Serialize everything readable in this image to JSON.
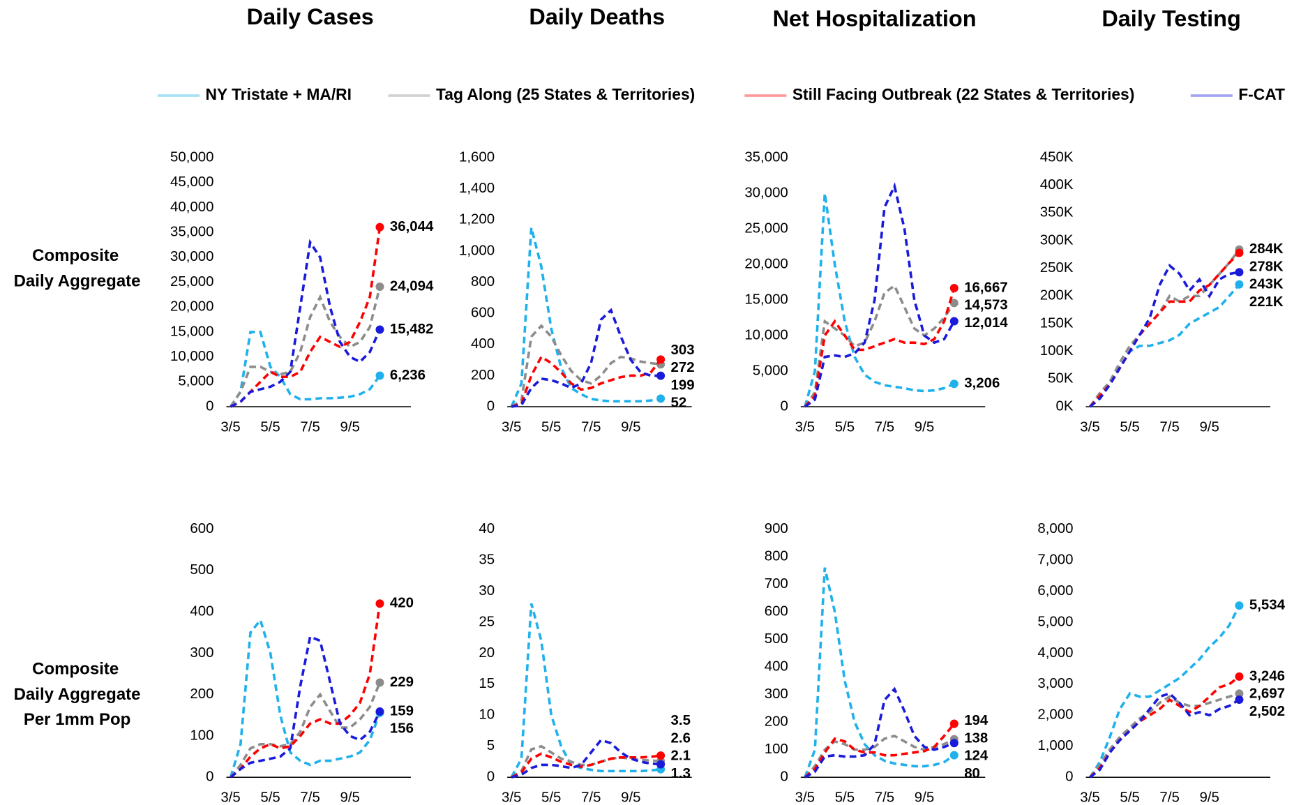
{
  "column_titles": [
    "Daily Cases",
    "Daily Deaths",
    "Net Hospitalization",
    "Daily Testing"
  ],
  "row_labels": [
    [
      "Composite",
      "Daily Aggregate"
    ],
    [
      "Composite",
      "Daily Aggregate",
      "Per 1mm Pop"
    ]
  ],
  "legend": [
    {
      "name": "NY Tristate + MA/RI",
      "color": "#1fb1ec"
    },
    {
      "name": "Tag Along (25 States & Territories)",
      "color": "#8c8c8c"
    },
    {
      "name": "Still Facing Outbreak (22 States & Territories)",
      "color": "#ff0000"
    },
    {
      "name": "F-CAT",
      "color": "#1a1adb"
    }
  ],
  "chart_data": [
    {
      "type": "line",
      "categories": [
        "3/5",
        null,
        null,
        null,
        "5/5",
        null,
        null,
        null,
        "7/5",
        null,
        null,
        null,
        "9/5",
        null,
        null,
        null
      ],
      "ylim": [
        0,
        50000
      ],
      "yticks": [
        0,
        {
          "value": 5000,
          "label": "5,000"
        },
        {
          "value": 10000,
          "label": "10,000"
        },
        {
          "value": 15000,
          "label": "15,000"
        },
        {
          "value": 20000,
          "label": "20,000"
        },
        {
          "value": 25000,
          "label": "25,000"
        },
        {
          "value": 30000,
          "label": "30,000"
        },
        {
          "value": 35000,
          "label": "35,000"
        },
        {
          "value": 40000,
          "label": "40,000"
        },
        {
          "value": 45000,
          "label": "45,000"
        },
        {
          "value": 50000,
          "label": "50,000"
        }
      ],
      "series": [
        {
          "values": [
            0,
            3000,
            15000,
            15000,
            8000,
            6000,
            2500,
            1500,
            1500,
            1700,
            1700,
            1800,
            2000,
            2500,
            3500,
            6236
          ],
          "end_label": "6,236"
        },
        {
          "values": [
            0,
            3000,
            8000,
            8000,
            7000,
            6500,
            7000,
            11000,
            18000,
            22000,
            17000,
            14000,
            12000,
            13000,
            16000,
            24094
          ],
          "end_label": "24,094"
        },
        {
          "values": [
            0,
            1000,
            3000,
            5000,
            7000,
            6000,
            6000,
            7000,
            11000,
            14000,
            13000,
            12000,
            13000,
            17000,
            22000,
            36044
          ],
          "end_label": "36,044"
        },
        {
          "values": [
            0,
            1000,
            3000,
            3500,
            4000,
            5000,
            7000,
            20000,
            33000,
            30000,
            20000,
            13000,
            10000,
            9000,
            11000,
            15482
          ],
          "end_label": "15,482"
        }
      ]
    },
    {
      "type": "line",
      "categories": [
        "3/5",
        null,
        null,
        null,
        "5/5",
        null,
        null,
        null,
        "7/5",
        null,
        null,
        null,
        "9/5",
        null,
        null,
        null
      ],
      "ylim": [
        0,
        1600
      ],
      "yticks": [
        0,
        200,
        400,
        600,
        800,
        {
          "value": 1000,
          "label": "1,000"
        },
        {
          "value": 1200,
          "label": "1,200"
        },
        {
          "value": 1400,
          "label": "1,400"
        },
        {
          "value": 1600,
          "label": "1,600"
        }
      ],
      "series": [
        {
          "values": [
            0,
            150,
            1150,
            900,
            500,
            250,
            120,
            80,
            50,
            40,
            35,
            35,
            35,
            35,
            40,
            52
          ],
          "end_label": "52"
        },
        {
          "values": [
            0,
            40,
            450,
            520,
            450,
            330,
            230,
            170,
            150,
            200,
            280,
            320,
            310,
            290,
            280,
            272
          ],
          "end_label": "272"
        },
        {
          "values": [
            0,
            20,
            200,
            320,
            280,
            220,
            150,
            110,
            120,
            150,
            170,
            190,
            200,
            200,
            220,
            303
          ],
          "end_label": "303"
        },
        {
          "values": [
            0,
            10,
            120,
            180,
            170,
            150,
            120,
            150,
            280,
            560,
            620,
            450,
            300,
            220,
            200,
            199
          ],
          "end_label": "199"
        }
      ]
    },
    {
      "type": "line",
      "categories": [
        "3/5",
        null,
        null,
        null,
        "5/5",
        null,
        null,
        null,
        "7/5",
        null,
        null,
        null,
        "9/5",
        null,
        null,
        null
      ],
      "ylim": [
        0,
        35000
      ],
      "yticks": [
        0,
        {
          "value": 5000,
          "label": "5,000"
        },
        {
          "value": 10000,
          "label": "10,000"
        },
        {
          "value": 15000,
          "label": "15,000"
        },
        {
          "value": 20000,
          "label": "20,000"
        },
        {
          "value": 25000,
          "label": "25,000"
        },
        {
          "value": 30000,
          "label": "30,000"
        },
        {
          "value": 35000,
          "label": "35,000"
        }
      ],
      "series": [
        {
          "values": [
            0,
            5000,
            30000,
            20000,
            12000,
            7000,
            4500,
            3500,
            3000,
            2800,
            2600,
            2300,
            2200,
            2300,
            2600,
            3206
          ],
          "end_label": "3,206"
        },
        {
          "values": [
            0,
            2000,
            12000,
            11000,
            10000,
            8500,
            9000,
            12000,
            16000,
            17000,
            14000,
            11000,
            10000,
            11000,
            12500,
            14573
          ],
          "end_label": "14,573"
        },
        {
          "values": [
            0,
            1500,
            10000,
            12000,
            10000,
            8000,
            8000,
            8500,
            9000,
            9500,
            9000,
            9000,
            8800,
            9500,
            12000,
            16667
          ],
          "end_label": "16,667"
        },
        {
          "values": [
            0,
            1000,
            7000,
            7200,
            7000,
            7500,
            9000,
            15000,
            28000,
            31000,
            25000,
            15000,
            10000,
            9000,
            9500,
            12014
          ],
          "end_label": "12,014"
        }
      ]
    },
    {
      "type": "line",
      "categories": [
        "3/5",
        null,
        null,
        null,
        "5/5",
        null,
        null,
        null,
        "7/5",
        null,
        null,
        null,
        "9/5",
        null,
        null,
        null
      ],
      "ylim": [
        0,
        450000
      ],
      "yticks": [
        {
          "value": 0,
          "label": "0K"
        },
        {
          "value": 50000,
          "label": "50K"
        },
        {
          "value": 100000,
          "label": "100K"
        },
        {
          "value": 150000,
          "label": "150K"
        },
        {
          "value": 200000,
          "label": "200K"
        },
        {
          "value": 250000,
          "label": "250K"
        },
        {
          "value": 300000,
          "label": "300K"
        },
        {
          "value": 350000,
          "label": "350K"
        },
        {
          "value": 400000,
          "label": "400K"
        },
        {
          "value": 450000,
          "label": "450K"
        }
      ],
      "series": [
        {
          "values": [
            0,
            15000,
            40000,
            70000,
            100000,
            110000,
            110000,
            115000,
            120000,
            130000,
            150000,
            160000,
            170000,
            180000,
            200000,
            221000
          ],
          "end_label": "221K"
        },
        {
          "values": [
            0,
            25000,
            45000,
            80000,
            110000,
            130000,
            150000,
            170000,
            200000,
            190000,
            200000,
            200000,
            220000,
            240000,
            260000,
            284000
          ],
          "end_label": "284K"
        },
        {
          "values": [
            0,
            20000,
            40000,
            70000,
            100000,
            130000,
            150000,
            170000,
            190000,
            190000,
            190000,
            210000,
            220000,
            240000,
            260000,
            278000
          ],
          "end_label": "278K"
        },
        {
          "values": [
            0,
            15000,
            40000,
            70000,
            100000,
            130000,
            160000,
            220000,
            255000,
            240000,
            210000,
            230000,
            200000,
            230000,
            240000,
            243000
          ],
          "end_label": "243K"
        }
      ]
    },
    {
      "type": "line",
      "categories": [
        "3/5",
        null,
        null,
        null,
        "5/5",
        null,
        null,
        null,
        "7/5",
        null,
        null,
        null,
        "9/5",
        null,
        null,
        null
      ],
      "ylim": [
        0,
        600
      ],
      "yticks": [
        0,
        100,
        200,
        300,
        400,
        500,
        600
      ],
      "series": [
        {
          "values": [
            0,
            80,
            350,
            380,
            300,
            150,
            60,
            40,
            30,
            40,
            40,
            45,
            50,
            60,
            90,
            156
          ],
          "end_label": "156"
        },
        {
          "values": [
            0,
            30,
            70,
            80,
            80,
            75,
            80,
            110,
            170,
            200,
            160,
            120,
            120,
            140,
            170,
            229
          ],
          "end_label": "229"
        },
        {
          "values": [
            0,
            20,
            50,
            70,
            80,
            70,
            75,
            100,
            130,
            140,
            130,
            130,
            150,
            180,
            250,
            420
          ],
          "end_label": "420"
        },
        {
          "values": [
            0,
            20,
            35,
            40,
            45,
            50,
            70,
            220,
            340,
            330,
            230,
            130,
            100,
            90,
            110,
            159
          ],
          "end_label": "159"
        }
      ]
    },
    {
      "type": "line",
      "categories": [
        "3/5",
        null,
        null,
        null,
        "5/5",
        null,
        null,
        null,
        "7/5",
        null,
        null,
        null,
        "9/5",
        null,
        null,
        null
      ],
      "ylim": [
        0,
        40
      ],
      "yticks": [
        0,
        5,
        10,
        15,
        20,
        25,
        30,
        35,
        40
      ],
      "series": [
        {
          "values": [
            0,
            3,
            28,
            22,
            10,
            5,
            2,
            1.5,
            1.2,
            1,
            1,
            1,
            1,
            1,
            1.1,
            1.3
          ],
          "end_label": "1.3"
        },
        {
          "values": [
            0,
            1,
            4.5,
            5,
            4,
            3,
            2.5,
            2,
            2,
            2.5,
            3,
            3.2,
            3,
            2.8,
            2.7,
            2.6
          ],
          "end_label": "2.6"
        },
        {
          "values": [
            0,
            0.8,
            3,
            3.8,
            3.2,
            2.5,
            2,
            1.7,
            2,
            2.5,
            3,
            3.2,
            3.2,
            3.2,
            3.3,
            3.5
          ],
          "end_label": "3.5"
        },
        {
          "values": [
            0,
            0.4,
            1.5,
            2,
            2,
            1.8,
            1.5,
            2,
            4,
            6,
            5.5,
            4,
            3,
            2.5,
            2.2,
            2.1
          ],
          "end_label": "2.1"
        }
      ]
    },
    {
      "type": "line",
      "categories": [
        "3/5",
        null,
        null,
        null,
        "5/5",
        null,
        null,
        null,
        "7/5",
        null,
        null,
        null,
        "9/5",
        null,
        null,
        null
      ],
      "ylim": [
        0,
        900
      ],
      "yticks": [
        0,
        100,
        200,
        300,
        400,
        500,
        600,
        700,
        800,
        900
      ],
      "series": [
        {
          "values": [
            0,
            100,
            760,
            600,
            350,
            200,
            120,
            80,
            60,
            50,
            45,
            40,
            40,
            45,
            55,
            80
          ],
          "end_label": "80"
        },
        {
          "values": [
            0,
            40,
            100,
            130,
            120,
            100,
            100,
            110,
            140,
            150,
            130,
            110,
            100,
            110,
            120,
            138
          ],
          "end_label": "138"
        },
        {
          "values": [
            0,
            30,
            90,
            140,
            130,
            100,
            90,
            90,
            80,
            80,
            85,
            90,
            95,
            110,
            150,
            194
          ],
          "end_label": "194"
        },
        {
          "values": [
            0,
            20,
            75,
            80,
            75,
            75,
            80,
            120,
            280,
            320,
            240,
            150,
            110,
            100,
            110,
            124
          ],
          "end_label": "124"
        }
      ]
    },
    {
      "type": "line",
      "categories": [
        "3/5",
        null,
        null,
        null,
        "5/5",
        null,
        null,
        null,
        "7/5",
        null,
        null,
        null,
        "9/5",
        null,
        null,
        null
      ],
      "ylim": [
        0,
        8000
      ],
      "yticks": [
        0,
        {
          "value": 1000,
          "label": "1,000"
        },
        {
          "value": 2000,
          "label": "2,000"
        },
        {
          "value": 3000,
          "label": "3,000"
        },
        {
          "value": 4000,
          "label": "4,000"
        },
        {
          "value": 5000,
          "label": "5,000"
        },
        {
          "value": 6000,
          "label": "6,000"
        },
        {
          "value": 7000,
          "label": "7,000"
        },
        {
          "value": 8000,
          "label": "8,000"
        }
      ],
      "series": [
        {
          "values": [
            0,
            500,
            1300,
            2200,
            2700,
            2600,
            2600,
            2800,
            3000,
            3200,
            3500,
            3800,
            4200,
            4500,
            4900,
            5534
          ],
          "end_label": "5,534"
        },
        {
          "values": [
            0,
            400,
            900,
            1300,
            1600,
            1900,
            2100,
            2400,
            2600,
            2400,
            2300,
            2300,
            2400,
            2500,
            2600,
            2697
          ],
          "end_label": "2,697"
        },
        {
          "values": [
            0,
            300,
            800,
            1200,
            1500,
            1800,
            2000,
            2200,
            2500,
            2300,
            2100,
            2300,
            2600,
            2900,
            3000,
            3246
          ],
          "end_label": "3,246"
        },
        {
          "values": [
            0,
            250,
            800,
            1200,
            1500,
            1800,
            2200,
            2600,
            2700,
            2400,
            2000,
            2100,
            2000,
            2200,
            2300,
            2502
          ],
          "end_label": "2,502"
        }
      ]
    }
  ]
}
